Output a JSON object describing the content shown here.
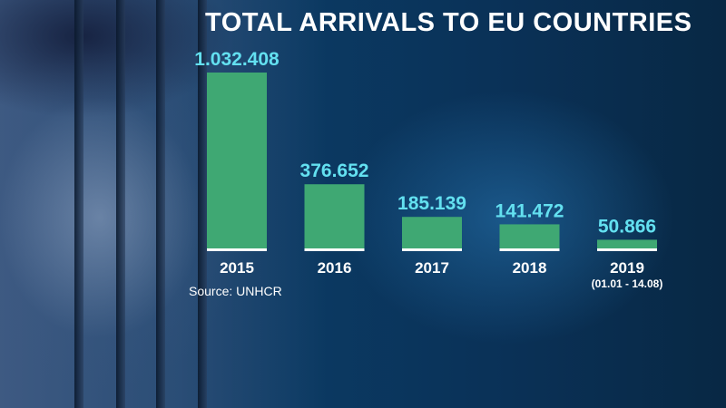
{
  "chart_data": {
    "type": "bar",
    "title": "TOTAL ARRIVALS TO EU COUNTRIES",
    "categories": [
      "2015",
      "2016",
      "2017",
      "2018",
      "2019"
    ],
    "category_sublabels": [
      "",
      "",
      "",
      "",
      "(01.01 - 14.08)"
    ],
    "values": [
      1032408,
      376652,
      185139,
      141472,
      50866
    ],
    "value_labels": [
      "1.032.408",
      "376.652",
      "185.139",
      "141.472",
      "50.866"
    ],
    "xlabel": "",
    "ylabel": "",
    "ylim": [
      0,
      1032408
    ],
    "grid": false,
    "legend": "none",
    "source": "Source: UNHCR"
  },
  "colors": {
    "bar": "#3fa873",
    "value_label": "#63e0f0",
    "baseline": "#ffffff",
    "text": "#ffffff"
  }
}
